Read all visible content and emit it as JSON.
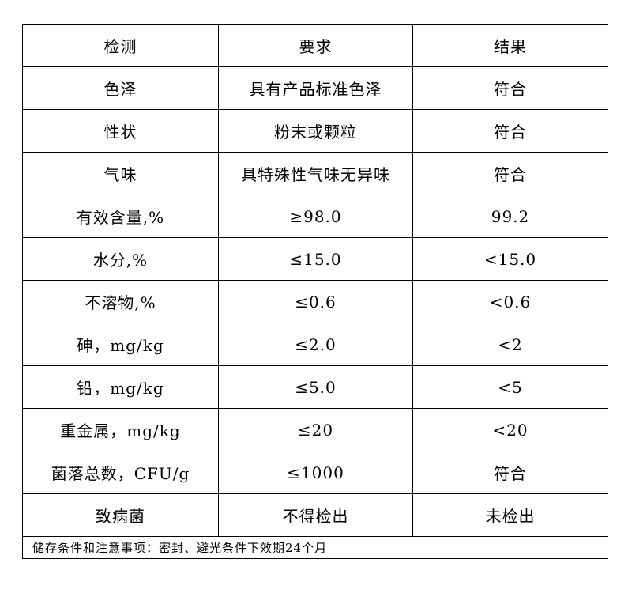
{
  "table": {
    "headers": [
      "检测",
      "要求",
      "结果"
    ],
    "rows": [
      [
        "色泽",
        "具有产品标准色泽",
        "符合"
      ],
      [
        "性状",
        "粉末或颗粒",
        "符合"
      ],
      [
        "气味",
        "具特殊性气味无异味",
        "符合"
      ],
      [
        "有效含量,%",
        "≥98.0",
        "99.2"
      ],
      [
        "水分,%",
        "≤15.0",
        "<15.0"
      ],
      [
        "不溶物,%",
        "≤0.6",
        "<0.6"
      ],
      [
        "砷，mg/kg",
        "≤2.0",
        "<2"
      ],
      [
        "铅，mg/kg",
        "≤5.0",
        "<5"
      ],
      [
        "重金属，mg/kg",
        "≤20",
        "<20"
      ],
      [
        "菌落总数，CFU/g",
        "≤1000",
        "符合"
      ],
      [
        "致病菌",
        "不得检出",
        "未检出"
      ]
    ],
    "note": "储存条件和注意事项：密封、避光条件下效期24个月"
  }
}
